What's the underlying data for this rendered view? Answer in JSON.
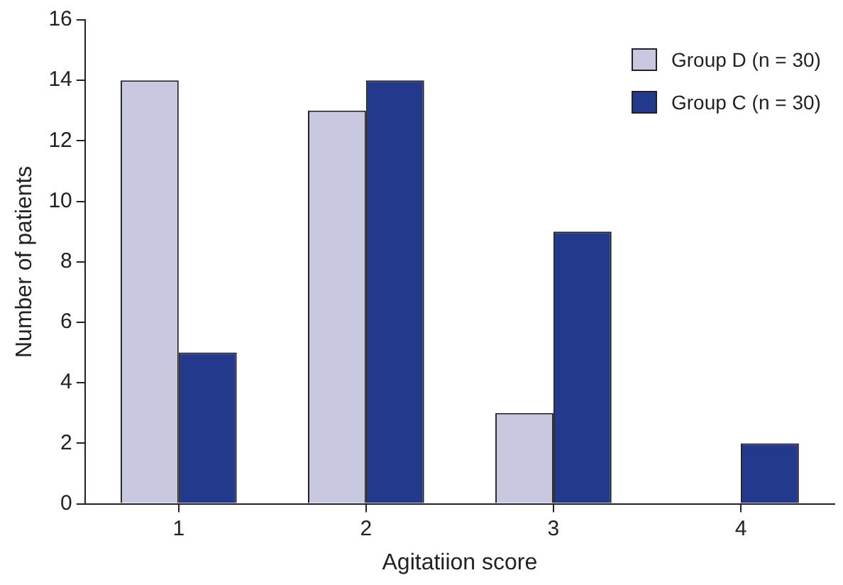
{
  "chart_data": {
    "type": "bar",
    "xlabel": "Agitatiion score",
    "ylabel": "Number of patients",
    "categories": [
      "1",
      "2",
      "3",
      "4"
    ],
    "series": [
      {
        "name": "Group D (n = 30)",
        "color": "#c8c8e0",
        "values": [
          14,
          13,
          3,
          0
        ]
      },
      {
        "name": "Group C (n = 30)",
        "color": "#233a8c",
        "values": [
          5,
          14,
          9,
          2
        ]
      }
    ],
    "ylim": [
      0,
      16
    ],
    "yticks": [
      0,
      2,
      4,
      6,
      8,
      10,
      12,
      14,
      16
    ],
    "grid": false,
    "legend": "top right"
  }
}
